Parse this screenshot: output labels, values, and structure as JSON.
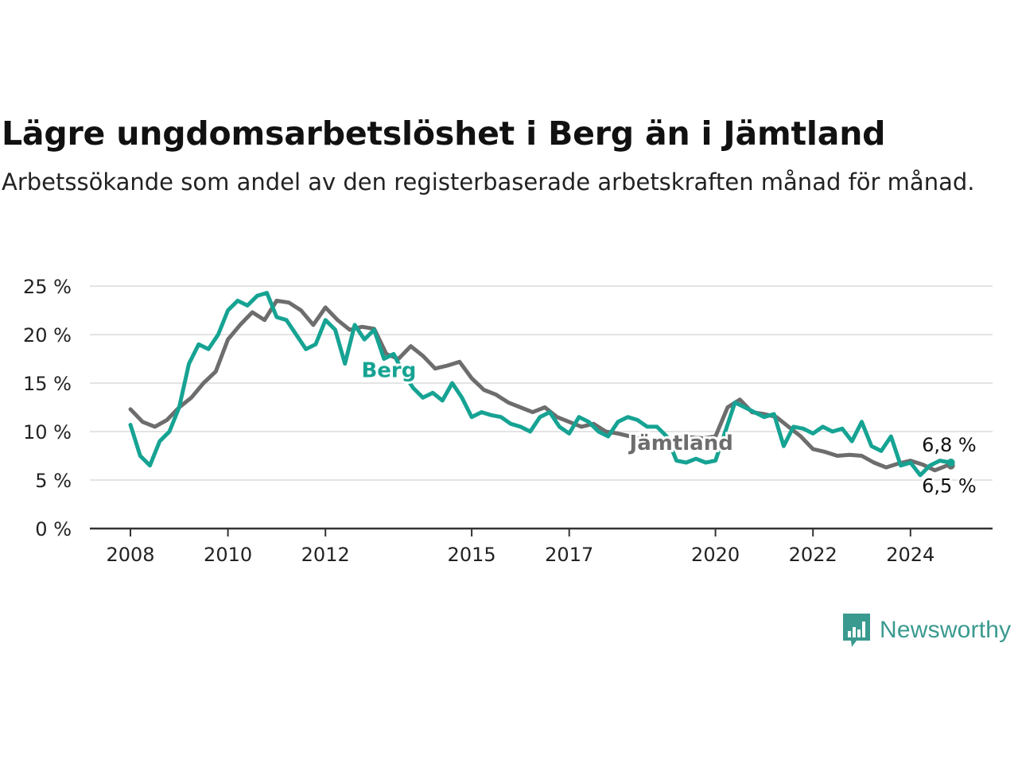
{
  "title": "Lägre ungdomsarbetslöshet i Berg än i Jämtland",
  "subtitle": "Arbetssökande som andel av den registerbaserade arbetskraften månad för månad.",
  "brand": "Newsworthy",
  "chart_data": {
    "type": "line",
    "ylim": [
      0,
      25
    ],
    "xlim": [
      2008.0,
      2024.83
    ],
    "yticks": [
      0,
      5,
      10,
      15,
      20,
      25
    ],
    "ytick_labels": [
      "0 %",
      "5 %",
      "10 %",
      "15 %",
      "20 %",
      "25 %"
    ],
    "xticks": [
      2008,
      2010,
      2012,
      2015,
      2017,
      2020,
      2022,
      2024
    ],
    "xtick_labels": [
      "2008",
      "2010",
      "2012",
      "2015",
      "2017",
      "2020",
      "2022",
      "2024"
    ],
    "grid": true,
    "series": [
      {
        "name": "Jämtland",
        "color": "#6d6d6e",
        "end_label": "6,5 %",
        "points": [
          [
            2008.0,
            12.3
          ],
          [
            2008.25,
            11.0
          ],
          [
            2008.5,
            10.5
          ],
          [
            2008.75,
            11.2
          ],
          [
            2009.0,
            12.5
          ],
          [
            2009.25,
            13.5
          ],
          [
            2009.5,
            15.0
          ],
          [
            2009.75,
            16.2
          ],
          [
            2010.0,
            19.5
          ],
          [
            2010.25,
            21.0
          ],
          [
            2010.5,
            22.3
          ],
          [
            2010.75,
            21.5
          ],
          [
            2011.0,
            23.5
          ],
          [
            2011.25,
            23.3
          ],
          [
            2011.5,
            22.5
          ],
          [
            2011.75,
            21.0
          ],
          [
            2012.0,
            22.8
          ],
          [
            2012.25,
            21.5
          ],
          [
            2012.5,
            20.5
          ],
          [
            2012.75,
            20.8
          ],
          [
            2013.0,
            20.6
          ],
          [
            2013.25,
            18.0
          ],
          [
            2013.5,
            17.5
          ],
          [
            2013.75,
            18.8
          ],
          [
            2014.0,
            17.8
          ],
          [
            2014.25,
            16.5
          ],
          [
            2014.5,
            16.8
          ],
          [
            2014.75,
            17.2
          ],
          [
            2015.0,
            15.5
          ],
          [
            2015.25,
            14.3
          ],
          [
            2015.5,
            13.8
          ],
          [
            2015.75,
            13.0
          ],
          [
            2016.0,
            12.5
          ],
          [
            2016.25,
            12.0
          ],
          [
            2016.5,
            12.5
          ],
          [
            2016.75,
            11.5
          ],
          [
            2017.0,
            11.0
          ],
          [
            2017.25,
            10.5
          ],
          [
            2017.5,
            10.8
          ],
          [
            2017.75,
            10.0
          ],
          [
            2018.0,
            9.8
          ],
          [
            2018.25,
            9.5
          ],
          [
            2018.5,
            9.2
          ],
          [
            2018.75,
            9.0
          ],
          [
            2019.0,
            9.2
          ],
          [
            2019.25,
            9.3
          ],
          [
            2019.5,
            9.4
          ],
          [
            2019.75,
            9.3
          ],
          [
            2020.0,
            9.5
          ],
          [
            2020.25,
            12.5
          ],
          [
            2020.5,
            13.3
          ],
          [
            2020.75,
            12.0
          ],
          [
            2021.0,
            11.8
          ],
          [
            2021.25,
            11.5
          ],
          [
            2021.5,
            10.5
          ],
          [
            2021.75,
            9.5
          ],
          [
            2022.0,
            8.2
          ],
          [
            2022.25,
            7.9
          ],
          [
            2022.5,
            7.5
          ],
          [
            2022.75,
            7.6
          ],
          [
            2023.0,
            7.5
          ],
          [
            2023.25,
            6.8
          ],
          [
            2023.5,
            6.3
          ],
          [
            2023.75,
            6.7
          ],
          [
            2024.0,
            7.0
          ],
          [
            2024.25,
            6.6
          ],
          [
            2024.5,
            6.0
          ],
          [
            2024.75,
            6.5
          ],
          [
            2024.83,
            6.5
          ]
        ]
      },
      {
        "name": "Berg",
        "color": "#16a393",
        "end_label": "6,8 %",
        "points": [
          [
            2008.0,
            10.7
          ],
          [
            2008.2,
            7.5
          ],
          [
            2008.4,
            6.5
          ],
          [
            2008.6,
            9.0
          ],
          [
            2008.8,
            10.0
          ],
          [
            2009.0,
            12.5
          ],
          [
            2009.2,
            17.0
          ],
          [
            2009.4,
            19.0
          ],
          [
            2009.6,
            18.5
          ],
          [
            2009.8,
            20.0
          ],
          [
            2010.0,
            22.5
          ],
          [
            2010.2,
            23.5
          ],
          [
            2010.4,
            23.0
          ],
          [
            2010.6,
            24.0
          ],
          [
            2010.8,
            24.3
          ],
          [
            2011.0,
            21.8
          ],
          [
            2011.2,
            21.5
          ],
          [
            2011.4,
            20.0
          ],
          [
            2011.6,
            18.5
          ],
          [
            2011.8,
            19.0
          ],
          [
            2012.0,
            21.5
          ],
          [
            2012.2,
            20.5
          ],
          [
            2012.4,
            17.0
          ],
          [
            2012.6,
            21.0
          ],
          [
            2012.8,
            19.5
          ],
          [
            2013.0,
            20.5
          ],
          [
            2013.2,
            17.5
          ],
          [
            2013.4,
            18.0
          ],
          [
            2013.6,
            16.0
          ],
          [
            2013.8,
            14.5
          ],
          [
            2014.0,
            13.5
          ],
          [
            2014.2,
            14.0
          ],
          [
            2014.4,
            13.2
          ],
          [
            2014.6,
            15.0
          ],
          [
            2014.8,
            13.5
          ],
          [
            2015.0,
            11.5
          ],
          [
            2015.2,
            12.0
          ],
          [
            2015.4,
            11.7
          ],
          [
            2015.6,
            11.5
          ],
          [
            2015.8,
            10.8
          ],
          [
            2016.0,
            10.5
          ],
          [
            2016.2,
            10.0
          ],
          [
            2016.4,
            11.5
          ],
          [
            2016.6,
            12.0
          ],
          [
            2016.8,
            10.5
          ],
          [
            2017.0,
            9.8
          ],
          [
            2017.2,
            11.5
          ],
          [
            2017.4,
            11.0
          ],
          [
            2017.6,
            10.0
          ],
          [
            2017.8,
            9.5
          ],
          [
            2018.0,
            11.0
          ],
          [
            2018.2,
            11.5
          ],
          [
            2018.4,
            11.2
          ],
          [
            2018.6,
            10.5
          ],
          [
            2018.8,
            10.5
          ],
          [
            2019.0,
            9.5
          ],
          [
            2019.2,
            7.0
          ],
          [
            2019.4,
            6.8
          ],
          [
            2019.6,
            7.2
          ],
          [
            2019.8,
            6.8
          ],
          [
            2020.0,
            7.0
          ],
          [
            2020.2,
            10.0
          ],
          [
            2020.4,
            13.0
          ],
          [
            2020.6,
            12.5
          ],
          [
            2020.8,
            12.0
          ],
          [
            2021.0,
            11.5
          ],
          [
            2021.2,
            11.8
          ],
          [
            2021.4,
            8.5
          ],
          [
            2021.6,
            10.5
          ],
          [
            2021.8,
            10.3
          ],
          [
            2022.0,
            9.8
          ],
          [
            2022.2,
            10.5
          ],
          [
            2022.4,
            10.0
          ],
          [
            2022.6,
            10.3
          ],
          [
            2022.8,
            9.0
          ],
          [
            2023.0,
            11.0
          ],
          [
            2023.2,
            8.5
          ],
          [
            2023.4,
            8.0
          ],
          [
            2023.6,
            9.5
          ],
          [
            2023.8,
            6.5
          ],
          [
            2024.0,
            6.8
          ],
          [
            2024.2,
            5.5
          ],
          [
            2024.4,
            6.5
          ],
          [
            2024.6,
            7.0
          ],
          [
            2024.83,
            6.8
          ]
        ]
      }
    ],
    "series_labels": [
      {
        "text": "Berg",
        "series": "Berg",
        "x": 2013.3,
        "y": 15.6
      },
      {
        "text": "Jämtland",
        "series": "Jämtland",
        "x": 2019.3,
        "y": 8.1
      }
    ]
  }
}
